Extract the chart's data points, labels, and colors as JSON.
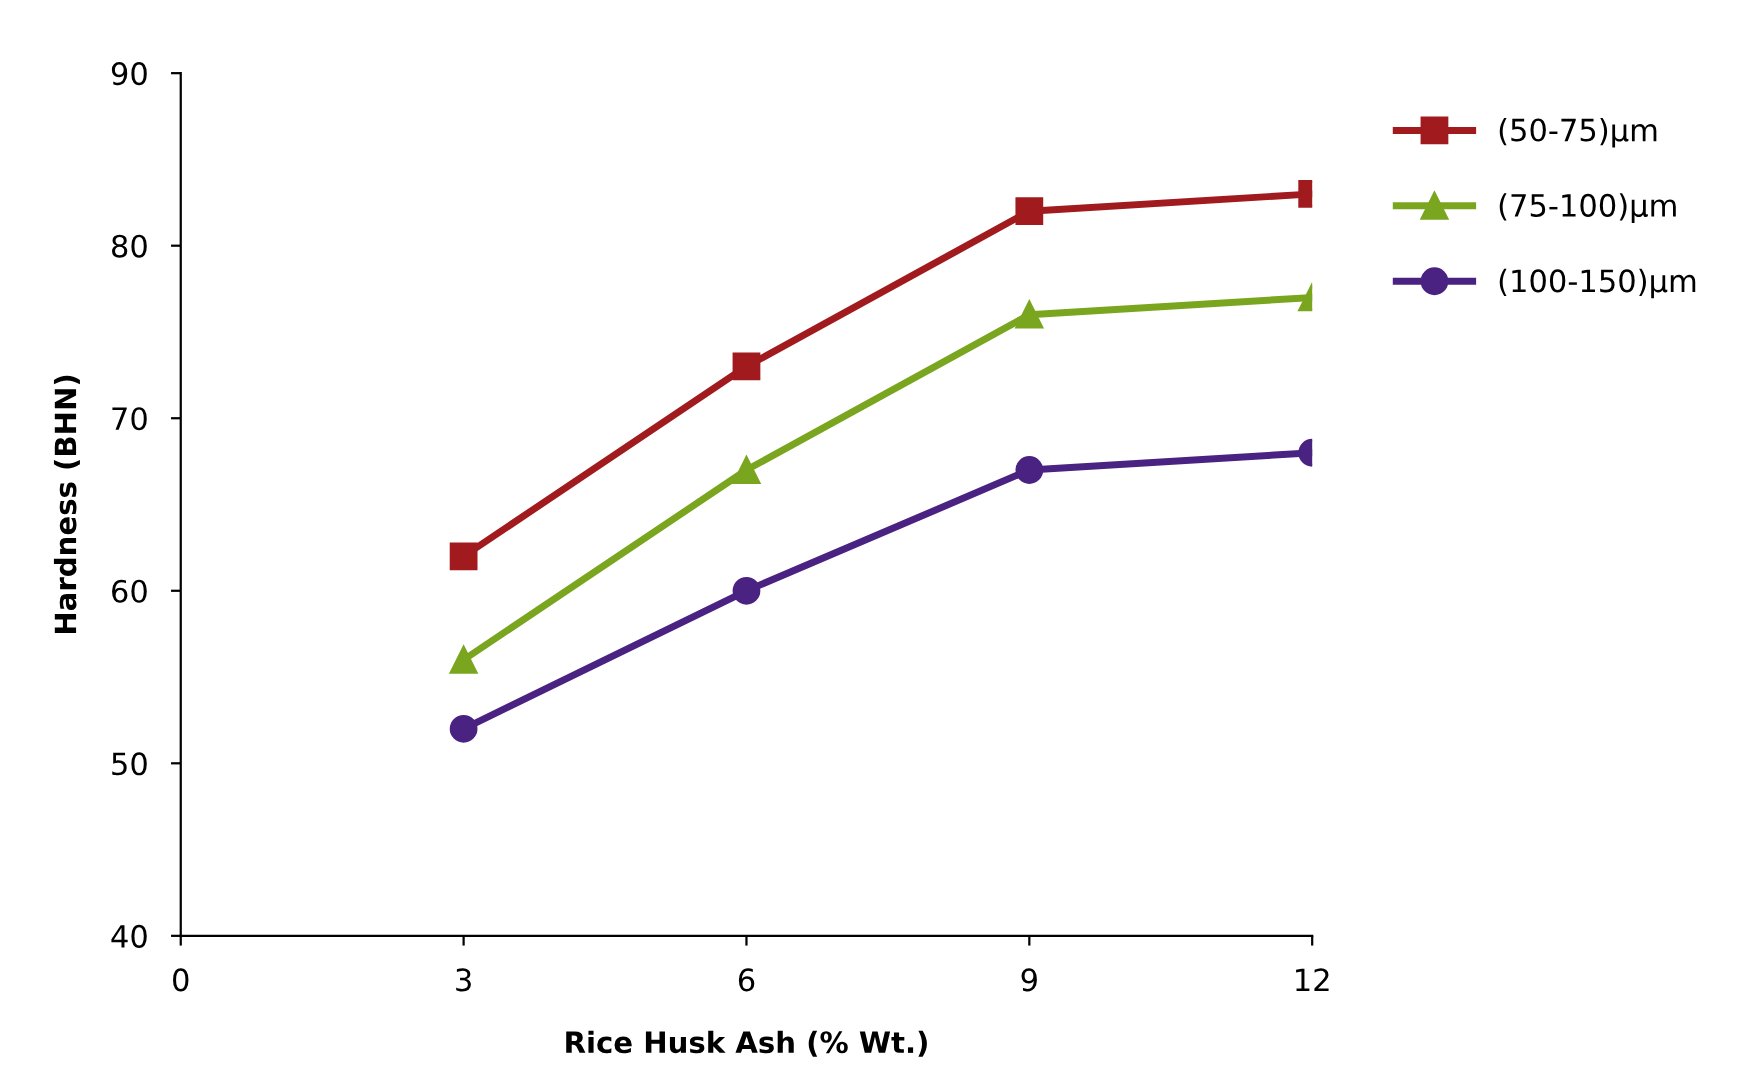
{
  "chart_data": {
    "type": "line",
    "xlabel": "Rice Husk Ash (% Wt.)",
    "ylabel": "Hardness (BHN)",
    "x": [
      3,
      6,
      9,
      12
    ],
    "xlim": [
      0,
      12
    ],
    "xticks": [
      0,
      3,
      6,
      9,
      12
    ],
    "ylim": [
      40,
      90
    ],
    "yticks": [
      40,
      50,
      60,
      70,
      80,
      90
    ],
    "grid": false,
    "legend": "top right",
    "line_style": "solid",
    "series": [
      {
        "name": "(50-75)µm",
        "color": "#a01a1e",
        "marker": "square",
        "values": [
          62,
          73,
          82,
          83
        ]
      },
      {
        "name": "(75-100)µm",
        "color": "#7aa61f",
        "marker": "triangle",
        "values": [
          56,
          67,
          76,
          77
        ]
      },
      {
        "name": "(100-150)µm",
        "color": "#4a2282",
        "marker": "circle",
        "values": [
          52,
          60,
          67,
          68
        ]
      }
    ]
  }
}
